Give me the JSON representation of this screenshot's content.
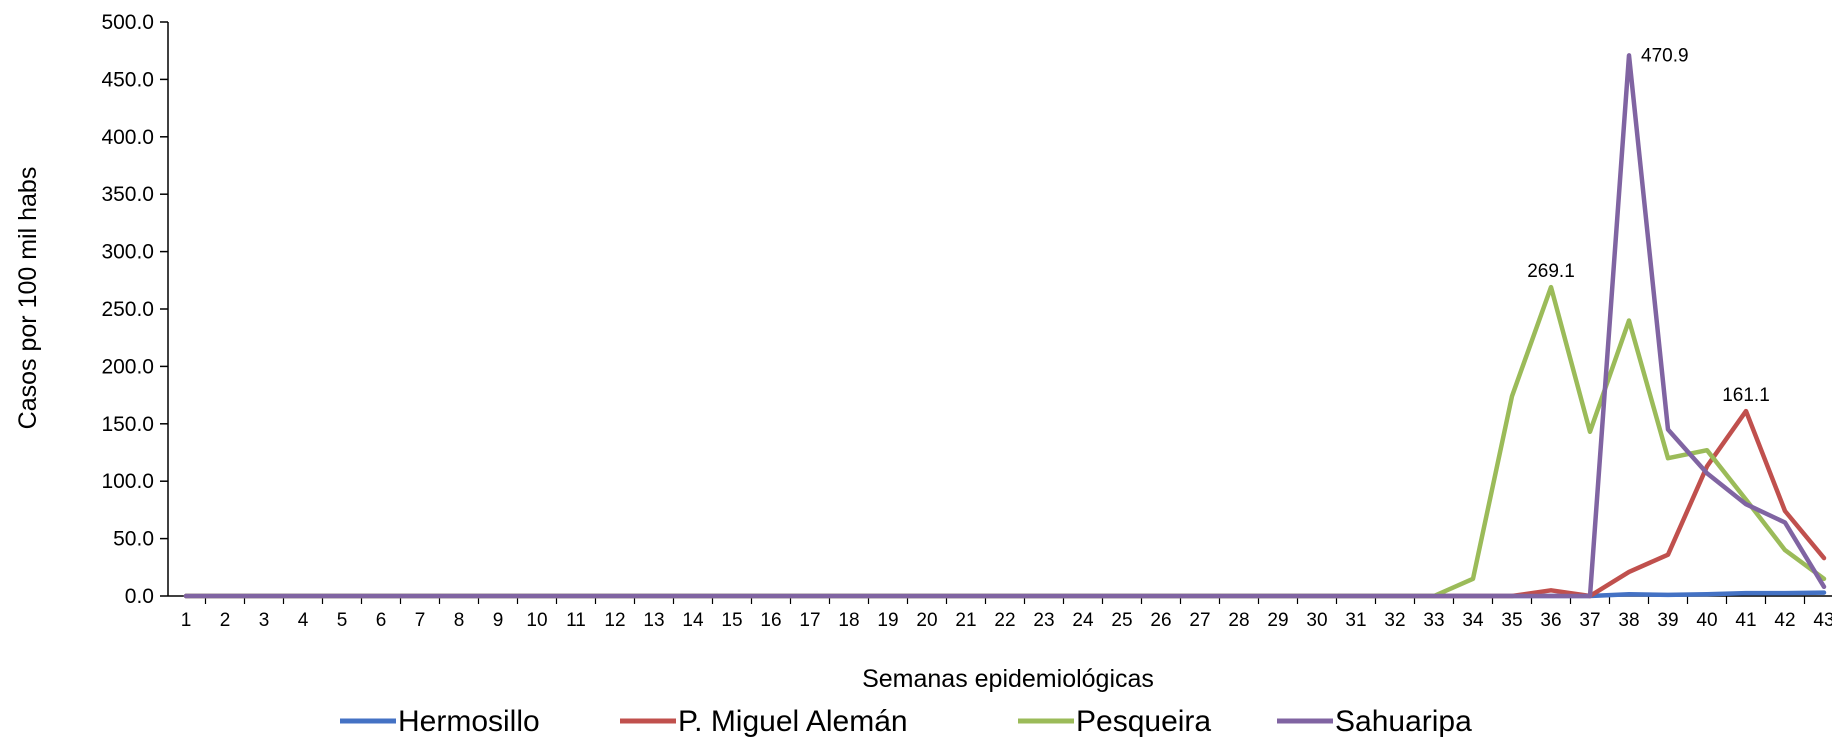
{
  "chart_data": {
    "type": "line",
    "xlabel": "Semanas epidemiológicas",
    "ylabel": "Casos por 100 mil habs",
    "ylim": [
      0,
      500
    ],
    "yticks": [
      "0.0",
      "50.0",
      "100.0",
      "150.0",
      "200.0",
      "250.0",
      "300.0",
      "350.0",
      "400.0",
      "450.0",
      "500.0"
    ],
    "categories": [
      "1",
      "2",
      "3",
      "4",
      "5",
      "6",
      "7",
      "8",
      "9",
      "10",
      "11",
      "12",
      "13",
      "14",
      "15",
      "16",
      "17",
      "18",
      "19",
      "20",
      "21",
      "22",
      "23",
      "24",
      "25",
      "26",
      "27",
      "28",
      "29",
      "30",
      "31",
      "32",
      "33",
      "34",
      "35",
      "36",
      "37",
      "38",
      "39",
      "40",
      "41",
      "42",
      "43"
    ],
    "series": [
      {
        "name": "Hermosillo",
        "color": "#4472C4",
        "values": [
          0,
          0,
          0,
          0,
          0,
          0,
          0,
          0,
          0,
          0,
          0,
          0,
          0,
          0,
          0,
          0,
          0,
          0,
          0,
          0,
          0,
          0,
          0,
          0,
          0,
          0,
          0,
          0,
          0,
          0,
          0,
          0,
          0,
          0,
          0,
          0,
          0,
          1.5,
          1,
          1.5,
          2.5,
          2.5,
          3
        ]
      },
      {
        "name": "P. Miguel Alemán",
        "color": "#C0504D",
        "values": [
          0,
          0,
          0,
          0,
          0,
          0,
          0,
          0,
          0,
          0,
          0,
          0,
          0,
          0,
          0,
          0,
          0,
          0,
          0,
          0,
          0,
          0,
          0,
          0,
          0,
          0,
          0,
          0,
          0,
          0,
          0,
          0,
          0,
          0,
          0,
          5,
          0,
          21,
          36,
          113,
          161.1,
          74,
          33
        ]
      },
      {
        "name": "Pesqueira",
        "color": "#9BBB59",
        "values": [
          0,
          0,
          0,
          0,
          0,
          0,
          0,
          0,
          0,
          0,
          0,
          0,
          0,
          0,
          0,
          0,
          0,
          0,
          0,
          0,
          0,
          0,
          0,
          0,
          0,
          0,
          0,
          0,
          0,
          0,
          0,
          0,
          0,
          15,
          174,
          269.1,
          143,
          240,
          120,
          127,
          84,
          40,
          15
        ]
      },
      {
        "name": "Sahuaripa",
        "color": "#8064A2",
        "values": [
          0,
          0,
          0,
          0,
          0,
          0,
          0,
          0,
          0,
          0,
          0,
          0,
          0,
          0,
          0,
          0,
          0,
          0,
          0,
          0,
          0,
          0,
          0,
          0,
          0,
          0,
          0,
          0,
          0,
          0,
          0,
          0,
          0,
          0,
          0,
          0,
          0,
          470.9,
          145,
          107,
          80,
          64,
          8
        ]
      }
    ],
    "annotations": [
      {
        "text": "470.9",
        "series": "Sahuaripa",
        "category": "38"
      },
      {
        "text": "269.1",
        "series": "Pesqueira",
        "category": "36"
      },
      {
        "text": "161.1",
        "series": "P. Miguel Alemán",
        "category": "41"
      }
    ],
    "legend": "bottom",
    "grid": false
  }
}
